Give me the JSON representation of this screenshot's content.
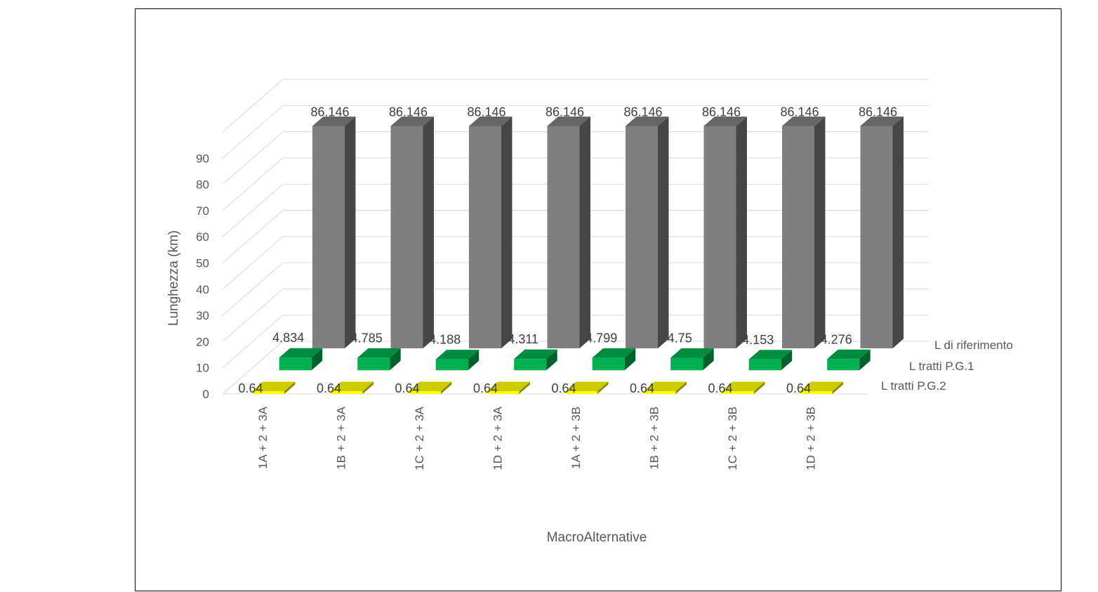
{
  "chart_data": {
    "type": "bar",
    "variant": "3d-clustered-depth",
    "categories": [
      "1A + 2 + 3A",
      "1B + 2 + 3A",
      "1C + 2 + 3A",
      "1D + 2 + 3A",
      "1A + 2 + 3B",
      "1B + 2 + 3B",
      "1C + 2 + 3B",
      "1D + 2 + 3B"
    ],
    "series": [
      {
        "name": "L tratti P.G.2",
        "color": "#FFFF00",
        "values": [
          0.64,
          0.64,
          0.64,
          0.64,
          0.64,
          0.64,
          0.64,
          0.64
        ]
      },
      {
        "name": "L tratti P.G.1",
        "color": "#00B050",
        "values": [
          4.834,
          4.785,
          4.188,
          4.311,
          4.799,
          4.75,
          4.153,
          4.276
        ]
      },
      {
        "name": "L di riferimento",
        "color": "#7F7F7F",
        "values": [
          86.146,
          86.146,
          86.146,
          86.146,
          86.146,
          86.146,
          86.146,
          86.146
        ]
      }
    ],
    "ylabel": "Lunghezza (km)",
    "xlabel": "MacroAlternative",
    "yticks": [
      "0",
      "10",
      "20",
      "30",
      "40",
      "50",
      "60",
      "70",
      "80",
      "90"
    ],
    "ylim": [
      0,
      90
    ],
    "grid": true,
    "legend": "right (series labels on depth axis)"
  }
}
